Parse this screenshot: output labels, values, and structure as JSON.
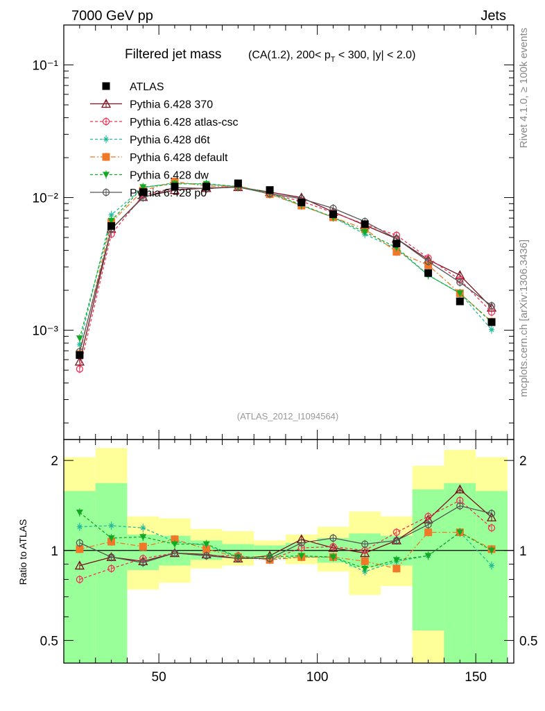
{
  "header": {
    "left": "7000 GeV pp",
    "right": "Jets",
    "right_vertical_1": "Rivet 4.1.0, ≥ 100k events",
    "right_vertical_2": "mcplots.cern.ch [arXiv:1306.3436]"
  },
  "chart_data": [
    {
      "type": "line",
      "title": "Filtered jet mass",
      "subtitle_part1": "(CA(1.2), 200< p",
      "subtitle_sub": "T",
      "subtitle_part2": " < 300, |y| < 2.0)",
      "watermark": "(ATLAS_2012_I1094564)",
      "yscale": "log",
      "ylim": [
        0.00015,
        0.2
      ],
      "xlim": [
        20,
        162
      ],
      "y_tick_labels": [
        "10⁻³",
        "10⁻²",
        "10⁻¹"
      ],
      "x": [
        25,
        35,
        45,
        55,
        65,
        75,
        85,
        95,
        105,
        115,
        125,
        135,
        145,
        155
      ],
      "legend": [
        "ATLAS",
        "Pythia 6.428 370",
        "Pythia 6.428 atlas-csc",
        "Pythia 6.428 d6t",
        "Pythia 6.428 default",
        "Pythia 6.428 dw",
        "Pythia 6.428 p0"
      ],
      "series": [
        {
          "name": "ATLAS",
          "color": "#000000",
          "marker": "square",
          "dash": "",
          "values": [
            0.00065,
            0.0061,
            0.011,
            0.0121,
            0.0121,
            0.0128,
            0.0114,
            0.0092,
            0.0075,
            0.0063,
            0.0045,
            0.0027,
            0.00165,
            0.00115
          ]
        },
        {
          "name": "Pythia 6.428 370",
          "color": "#7a0f1c",
          "marker": "triangle-open",
          "dash": "",
          "values": [
            0.00058,
            0.0058,
            0.0101,
            0.0114,
            0.0118,
            0.012,
            0.011,
            0.01,
            0.0078,
            0.0062,
            0.0049,
            0.0034,
            0.0026,
            0.00148
          ]
        },
        {
          "name": "Pythia 6.428 atlas-csc",
          "color": "#ee3355",
          "marker": "circle-open",
          "dash": "4,3",
          "values": [
            0.00051,
            0.0053,
            0.0104,
            0.0119,
            0.0116,
            0.0123,
            0.0106,
            0.0094,
            0.0077,
            0.0063,
            0.0052,
            0.0035,
            0.0024,
            0.00137
          ]
        },
        {
          "name": "Pythia 6.428 d6t",
          "color": "#22bb99",
          "marker": "star",
          "dash": "4,3",
          "values": [
            0.00078,
            0.0074,
            0.0119,
            0.0129,
            0.0126,
            0.0121,
            0.0107,
            0.0087,
            0.0071,
            0.0053,
            0.0041,
            0.0026,
            0.0019,
            0.00101
          ]
        },
        {
          "name": "Pythia 6.428 default",
          "color": "#f07828",
          "marker": "square",
          "dash": "7,3,2,3",
          "values": [
            0.00066,
            0.0065,
            0.0113,
            0.0132,
            0.0122,
            0.0122,
            0.0106,
            0.0087,
            0.0071,
            0.0058,
            0.0039,
            0.0031,
            0.0019,
            0.00116
          ]
        },
        {
          "name": "Pythia 6.428 dw",
          "color": "#11aa22",
          "marker": "triangle-down",
          "dash": "4,3",
          "values": [
            0.00087,
            0.0067,
            0.012,
            0.0127,
            0.0127,
            0.0121,
            0.0109,
            0.0088,
            0.0071,
            0.0055,
            0.0042,
            0.0026,
            0.0019,
            0.00115
          ]
        },
        {
          "name": "Pythia 6.428 p0",
          "color": "#555555",
          "marker": "circle-open",
          "dash": "",
          "values": [
            0.00069,
            0.0058,
            0.01,
            0.0119,
            0.0117,
            0.012,
            0.0107,
            0.0098,
            0.0083,
            0.0066,
            0.0049,
            0.0033,
            0.0023,
            0.00153
          ]
        }
      ]
    },
    {
      "type": "line",
      "ylabel": "Ratio to ATLAS",
      "xlabel": "",
      "ylim": [
        0.42,
        2.35
      ],
      "yscale": "log",
      "xlim": [
        20,
        162
      ],
      "x_ticks": [
        50,
        100,
        150
      ],
      "y_ticks": [
        0.5,
        1,
        2
      ],
      "x": [
        25,
        35,
        45,
        55,
        65,
        75,
        85,
        95,
        105,
        115,
        125,
        135,
        145,
        155
      ],
      "bins": [
        [
          20,
          30
        ],
        [
          30,
          40
        ],
        [
          40,
          50
        ],
        [
          50,
          60
        ],
        [
          60,
          70
        ],
        [
          70,
          80
        ],
        [
          80,
          90
        ],
        [
          90,
          100
        ],
        [
          100,
          110
        ],
        [
          110,
          120
        ],
        [
          120,
          130
        ],
        [
          130,
          140
        ],
        [
          140,
          150
        ],
        [
          150,
          160
        ]
      ],
      "band_inner": [
        [
          0.2,
          1.58
        ],
        [
          0.2,
          1.68
        ],
        [
          0.86,
          1.13
        ],
        [
          0.89,
          1.12
        ],
        [
          0.93,
          1.08
        ],
        [
          0.95,
          1.05
        ],
        [
          0.96,
          1.04
        ],
        [
          0.95,
          1.06
        ],
        [
          0.91,
          1.1
        ],
        [
          0.88,
          1.14
        ],
        [
          0.89,
          1.12
        ],
        [
          0.54,
          1.6
        ],
        [
          0.2,
          1.68
        ],
        [
          0.2,
          1.58
        ]
      ],
      "band_outer": [
        [
          0.45,
          2.05
        ],
        [
          0.2,
          2.2
        ],
        [
          0.74,
          1.3
        ],
        [
          0.78,
          1.28
        ],
        [
          0.87,
          1.18
        ],
        [
          0.89,
          1.16
        ],
        [
          0.94,
          1.08
        ],
        [
          0.9,
          1.13
        ],
        [
          0.85,
          1.2
        ],
        [
          0.71,
          1.35
        ],
        [
          0.76,
          1.3
        ],
        [
          0.2,
          1.92
        ],
        [
          0.2,
          2.17
        ],
        [
          0.45,
          2.05
        ]
      ],
      "series": [
        {
          "name": "Pythia 6.428 370",
          "color": "#7a0f1c",
          "marker": "triangle-open",
          "dash": "",
          "values": [
            0.89,
            0.95,
            0.92,
            0.98,
            0.97,
            0.94,
            0.96,
            1.09,
            1.02,
            0.98,
            1.08,
            1.27,
            1.6,
            1.29
          ]
        },
        {
          "name": "Pythia 6.428 atlas-csc",
          "color": "#ee3355",
          "marker": "circle-open",
          "dash": "4,3",
          "values": [
            0.8,
            0.87,
            0.94,
            0.98,
            0.96,
            0.96,
            0.93,
            1.02,
            1.03,
            1.0,
            1.15,
            1.3,
            1.47,
            1.19
          ]
        },
        {
          "name": "Pythia 6.428 d6t",
          "color": "#22bb99",
          "marker": "star",
          "dash": "4,3",
          "values": [
            1.2,
            1.21,
            1.19,
            1.07,
            1.04,
            0.95,
            0.94,
            0.95,
            0.95,
            0.85,
            0.92,
            0.96,
            1.15,
            0.89
          ]
        },
        {
          "name": "Pythia 6.428 default",
          "color": "#f07828",
          "marker": "square",
          "dash": "7,3,2,3",
          "values": [
            1.01,
            1.07,
            1.03,
            1.09,
            1.01,
            0.95,
            0.93,
            0.95,
            0.95,
            0.92,
            0.87,
            1.15,
            1.15,
            1.01
          ]
        },
        {
          "name": "Pythia 6.428 dw",
          "color": "#11aa22",
          "marker": "triangle-down",
          "dash": "4,3",
          "values": [
            1.34,
            1.1,
            1.11,
            1.05,
            1.05,
            0.95,
            0.95,
            0.96,
            0.95,
            0.87,
            0.93,
            0.96,
            1.15,
            1.0
          ]
        },
        {
          "name": "Pythia 6.428 p0",
          "color": "#555555",
          "marker": "circle-open",
          "dash": "",
          "values": [
            1.06,
            0.95,
            0.91,
            0.98,
            0.96,
            0.94,
            0.94,
            1.06,
            1.1,
            1.05,
            1.08,
            1.22,
            1.41,
            1.33
          ]
        }
      ]
    }
  ]
}
